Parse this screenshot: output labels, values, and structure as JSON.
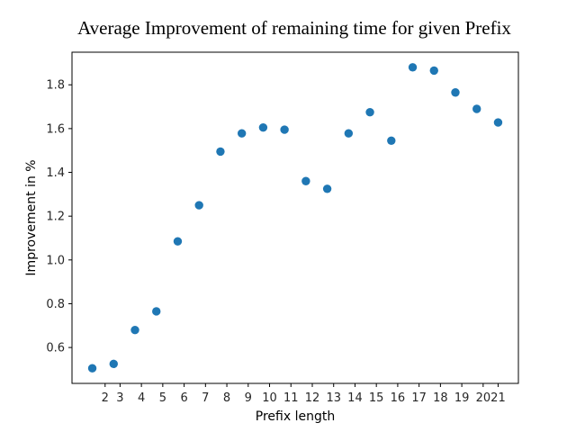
{
  "chart_data": {
    "type": "scatter",
    "title": "Average Improvement of remaining time for given Prefix",
    "xlabel": "Prefix length",
    "ylabel": "Improvement in %",
    "x": [
      1,
      2,
      3,
      4,
      5,
      6,
      7,
      8,
      9,
      10,
      11,
      12,
      13,
      14,
      15,
      16,
      17,
      18,
      19,
      20
    ],
    "y": [
      0.505,
      0.525,
      0.68,
      0.765,
      1.085,
      1.25,
      1.495,
      1.578,
      1.605,
      1.595,
      1.36,
      1.325,
      1.578,
      1.675,
      1.545,
      1.88,
      1.865,
      1.765,
      1.69,
      1.628
    ],
    "x_tick_labels": [
      "2",
      "3",
      "4",
      "5",
      "6",
      "7",
      "8",
      "9",
      "10",
      "11",
      "12",
      "13",
      "14",
      "15",
      "16",
      "17",
      "18",
      "19",
      "20",
      "21"
    ],
    "x_tick_positions": [
      1.6,
      2.3,
      3.3,
      4.3,
      5.3,
      6.3,
      7.3,
      8.3,
      9.3,
      10.3,
      11.3,
      12.3,
      13.3,
      14.3,
      15.3,
      16.3,
      17.3,
      18.3,
      19.3,
      20.0
    ],
    "y_ticks": [
      0.6,
      0.8,
      1.0,
      1.2,
      1.4,
      1.6,
      1.8
    ],
    "y_tick_labels": [
      "0.6",
      "0.8",
      "1.0",
      "1.2",
      "1.4",
      "1.6",
      "1.8"
    ],
    "xlim": [
      0.05,
      20.95
    ],
    "ylim": [
      0.436,
      1.949
    ],
    "grid": false,
    "marker_color": "#1f77b4"
  }
}
